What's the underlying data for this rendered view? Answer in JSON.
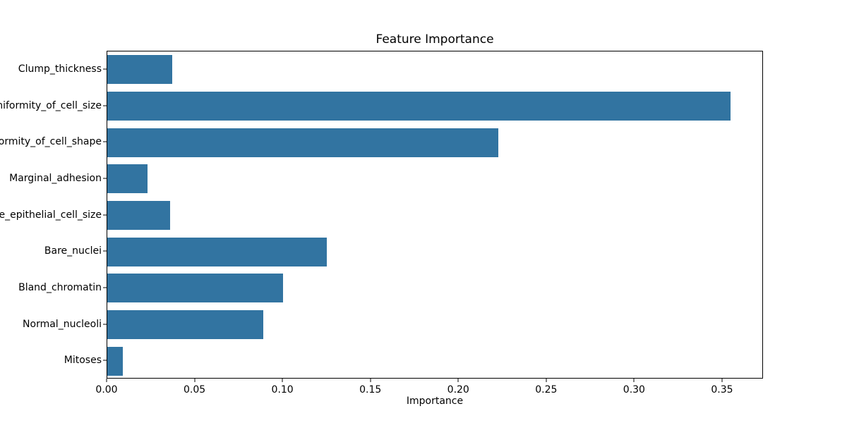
{
  "chart_data": {
    "type": "bar",
    "orientation": "horizontal",
    "title": "Feature Importance",
    "xlabel": "Importance",
    "ylabel": "",
    "categories": [
      "Clump_thickness",
      "Uniformity_of_cell_size",
      "Uniformity_of_cell_shape",
      "Marginal_adhesion",
      "Single_epithelial_cell_size",
      "Bare_nuclei",
      "Bland_chromatin",
      "Normal_nucleoli",
      "Mitoses"
    ],
    "values": [
      0.037,
      0.355,
      0.223,
      0.023,
      0.036,
      0.125,
      0.1,
      0.089,
      0.009
    ],
    "xlim": [
      0,
      0.3733
    ],
    "xticks": [
      0,
      0.05,
      0.1,
      0.15,
      0.2,
      0.25,
      0.3,
      0.35
    ],
    "xtick_labels": [
      "0.00",
      "0.05",
      "0.10",
      "0.15",
      "0.20",
      "0.25",
      "0.30",
      "0.35"
    ],
    "bar_color": "#3274a1",
    "grid": false,
    "legend": "none",
    "background_color": "#ffffff",
    "text_color": "#000000"
  }
}
